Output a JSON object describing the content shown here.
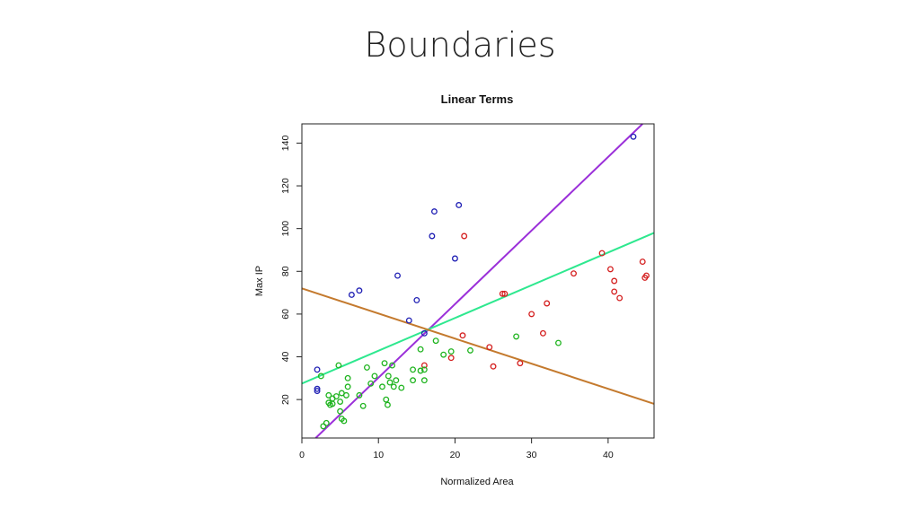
{
  "slide": {
    "title": "Boundaries"
  },
  "chart_data": {
    "type": "scatter",
    "title": "Linear Terms",
    "xlabel": "Normalized Area",
    "ylabel": "Max IP",
    "xlim": [
      0,
      46
    ],
    "ylim": [
      2,
      149
    ],
    "xticks": [
      0,
      10,
      20,
      30,
      40
    ],
    "yticks": [
      20,
      40,
      60,
      80,
      100,
      120,
      140
    ],
    "grid": false,
    "series": [
      {
        "color": "#1f1fb4",
        "marker": "open-circle",
        "points": [
          [
            2,
            24
          ],
          [
            2,
            25
          ],
          [
            2,
            34
          ],
          [
            6.5,
            69
          ],
          [
            7.5,
            71
          ],
          [
            12.5,
            78
          ],
          [
            14,
            57
          ],
          [
            15,
            66.5
          ],
          [
            16,
            51
          ],
          [
            17,
            96.5
          ],
          [
            17.3,
            108
          ],
          [
            20,
            86
          ],
          [
            20.5,
            111
          ],
          [
            43.3,
            143
          ]
        ]
      },
      {
        "color": "#d41f1f",
        "marker": "open-circle",
        "points": [
          [
            16,
            36
          ],
          [
            19.5,
            39.5
          ],
          [
            21,
            50
          ],
          [
            21.2,
            96.5
          ],
          [
            24.5,
            44.5
          ],
          [
            25,
            35.5
          ],
          [
            26.2,
            69.5
          ],
          [
            26.5,
            69.5
          ],
          [
            28.5,
            37
          ],
          [
            30,
            60
          ],
          [
            31.5,
            51
          ],
          [
            32,
            65
          ],
          [
            35.5,
            79
          ],
          [
            39.2,
            88.5
          ],
          [
            40.3,
            81
          ],
          [
            40.8,
            75.5
          ],
          [
            40.8,
            70.5
          ],
          [
            41.5,
            67.5
          ],
          [
            44.5,
            84.5
          ],
          [
            44.8,
            77
          ],
          [
            45,
            78
          ]
        ]
      },
      {
        "color": "#1fb41f",
        "marker": "open-circle",
        "points": [
          [
            2.5,
            31
          ],
          [
            2.8,
            7.5
          ],
          [
            3.2,
            9
          ],
          [
            3.5,
            22
          ],
          [
            3.5,
            18.5
          ],
          [
            3.7,
            17.5
          ],
          [
            4,
            20.5
          ],
          [
            4,
            18
          ],
          [
            4.5,
            21.5
          ],
          [
            4.8,
            36
          ],
          [
            5,
            19
          ],
          [
            5,
            14.5
          ],
          [
            5.2,
            23
          ],
          [
            5.2,
            11
          ],
          [
            5.5,
            10
          ],
          [
            5.8,
            22
          ],
          [
            6,
            30
          ],
          [
            6,
            26
          ],
          [
            7.5,
            22
          ],
          [
            8,
            17
          ],
          [
            8.5,
            35
          ],
          [
            9,
            27.5
          ],
          [
            9.5,
            31
          ],
          [
            10.5,
            26
          ],
          [
            10.8,
            37
          ],
          [
            11,
            20
          ],
          [
            11.2,
            17.5
          ],
          [
            11.3,
            31
          ],
          [
            11.5,
            28
          ],
          [
            11.8,
            36
          ],
          [
            12,
            26
          ],
          [
            12.3,
            29
          ],
          [
            13,
            25.5
          ],
          [
            14.5,
            34
          ],
          [
            14.5,
            29
          ],
          [
            15.5,
            33.5
          ],
          [
            15.5,
            43.5
          ],
          [
            16,
            34
          ],
          [
            16,
            29
          ],
          [
            17.5,
            47.5
          ],
          [
            18.5,
            41
          ],
          [
            19.5,
            42.5
          ],
          [
            22,
            43
          ],
          [
            28,
            49.5
          ],
          [
            33.5,
            46.5
          ]
        ]
      }
    ],
    "lines": [
      {
        "color": "#9b30d9",
        "x": [
          1.8,
          44.5
        ],
        "y": [
          2,
          149
        ]
      },
      {
        "color": "#2ee88f",
        "x": [
          0,
          46
        ],
        "y": [
          27.5,
          98
        ]
      },
      {
        "color": "#c47a2e",
        "x": [
          0,
          46
        ],
        "y": [
          72,
          18
        ]
      }
    ]
  }
}
